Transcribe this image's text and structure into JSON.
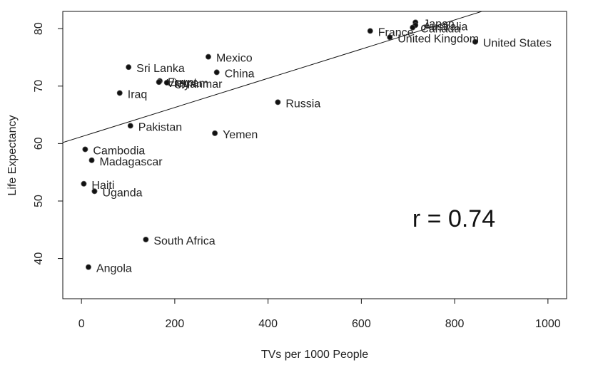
{
  "chart_data": {
    "type": "scatter",
    "xlabel": "TVs per 1000 People",
    "ylabel": "Life Expectancy",
    "xlim": [
      -40,
      1040
    ],
    "ylim": [
      33,
      83
    ],
    "x_ticks": [
      0,
      200,
      400,
      600,
      800,
      1000
    ],
    "x_tick_labels": [
      "0",
      "200",
      "400",
      "600",
      "800",
      "1000"
    ],
    "y_ticks": [
      40,
      50,
      60,
      70,
      80
    ],
    "y_tick_labels": [
      "40",
      "50",
      "60",
      "70",
      "80"
    ],
    "grid": false,
    "legend": "none",
    "annotation": "r =  0.74",
    "point_color": "#111111",
    "line_color": "#111111",
    "regression_line": {
      "intercept": 61.2,
      "slope": 0.0254
    },
    "points": [
      {
        "label": "Japan",
        "x": 716,
        "y": 81.1
      },
      {
        "label": "Australia",
        "x": 716,
        "y": 80.6
      },
      {
        "label": "Canada",
        "x": 710,
        "y": 80.2
      },
      {
        "label": "France",
        "x": 619,
        "y": 79.6
      },
      {
        "label": "United Kingdom",
        "x": 661,
        "y": 78.5
      },
      {
        "label": "United States",
        "x": 844,
        "y": 77.7
      },
      {
        "label": "Mexico",
        "x": 272,
        "y": 75.1
      },
      {
        "label": "Sri Lanka",
        "x": 101,
        "y": 73.3
      },
      {
        "label": "China",
        "x": 290,
        "y": 72.4
      },
      {
        "label": "Egypt",
        "x": 168,
        "y": 70.9
      },
      {
        "label": "Vietnam",
        "x": 166,
        "y": 70.7
      },
      {
        "label": "Myanmar",
        "x": 183,
        "y": 70.6
      },
      {
        "label": "Iraq",
        "x": 82,
        "y": 68.8
      },
      {
        "label": "Russia",
        "x": 421,
        "y": 67.2
      },
      {
        "label": "Pakistan",
        "x": 105,
        "y": 63.1
      },
      {
        "label": "Yemen",
        "x": 286,
        "y": 61.8
      },
      {
        "label": "Cambodia",
        "x": 8,
        "y": 59.0
      },
      {
        "label": "Madagascar",
        "x": 22,
        "y": 57.1
      },
      {
        "label": "Haiti",
        "x": 5,
        "y": 53.0
      },
      {
        "label": "Uganda",
        "x": 28,
        "y": 51.7
      },
      {
        "label": "South Africa",
        "x": 138,
        "y": 43.3
      },
      {
        "label": "Angola",
        "x": 15,
        "y": 38.5
      }
    ]
  }
}
